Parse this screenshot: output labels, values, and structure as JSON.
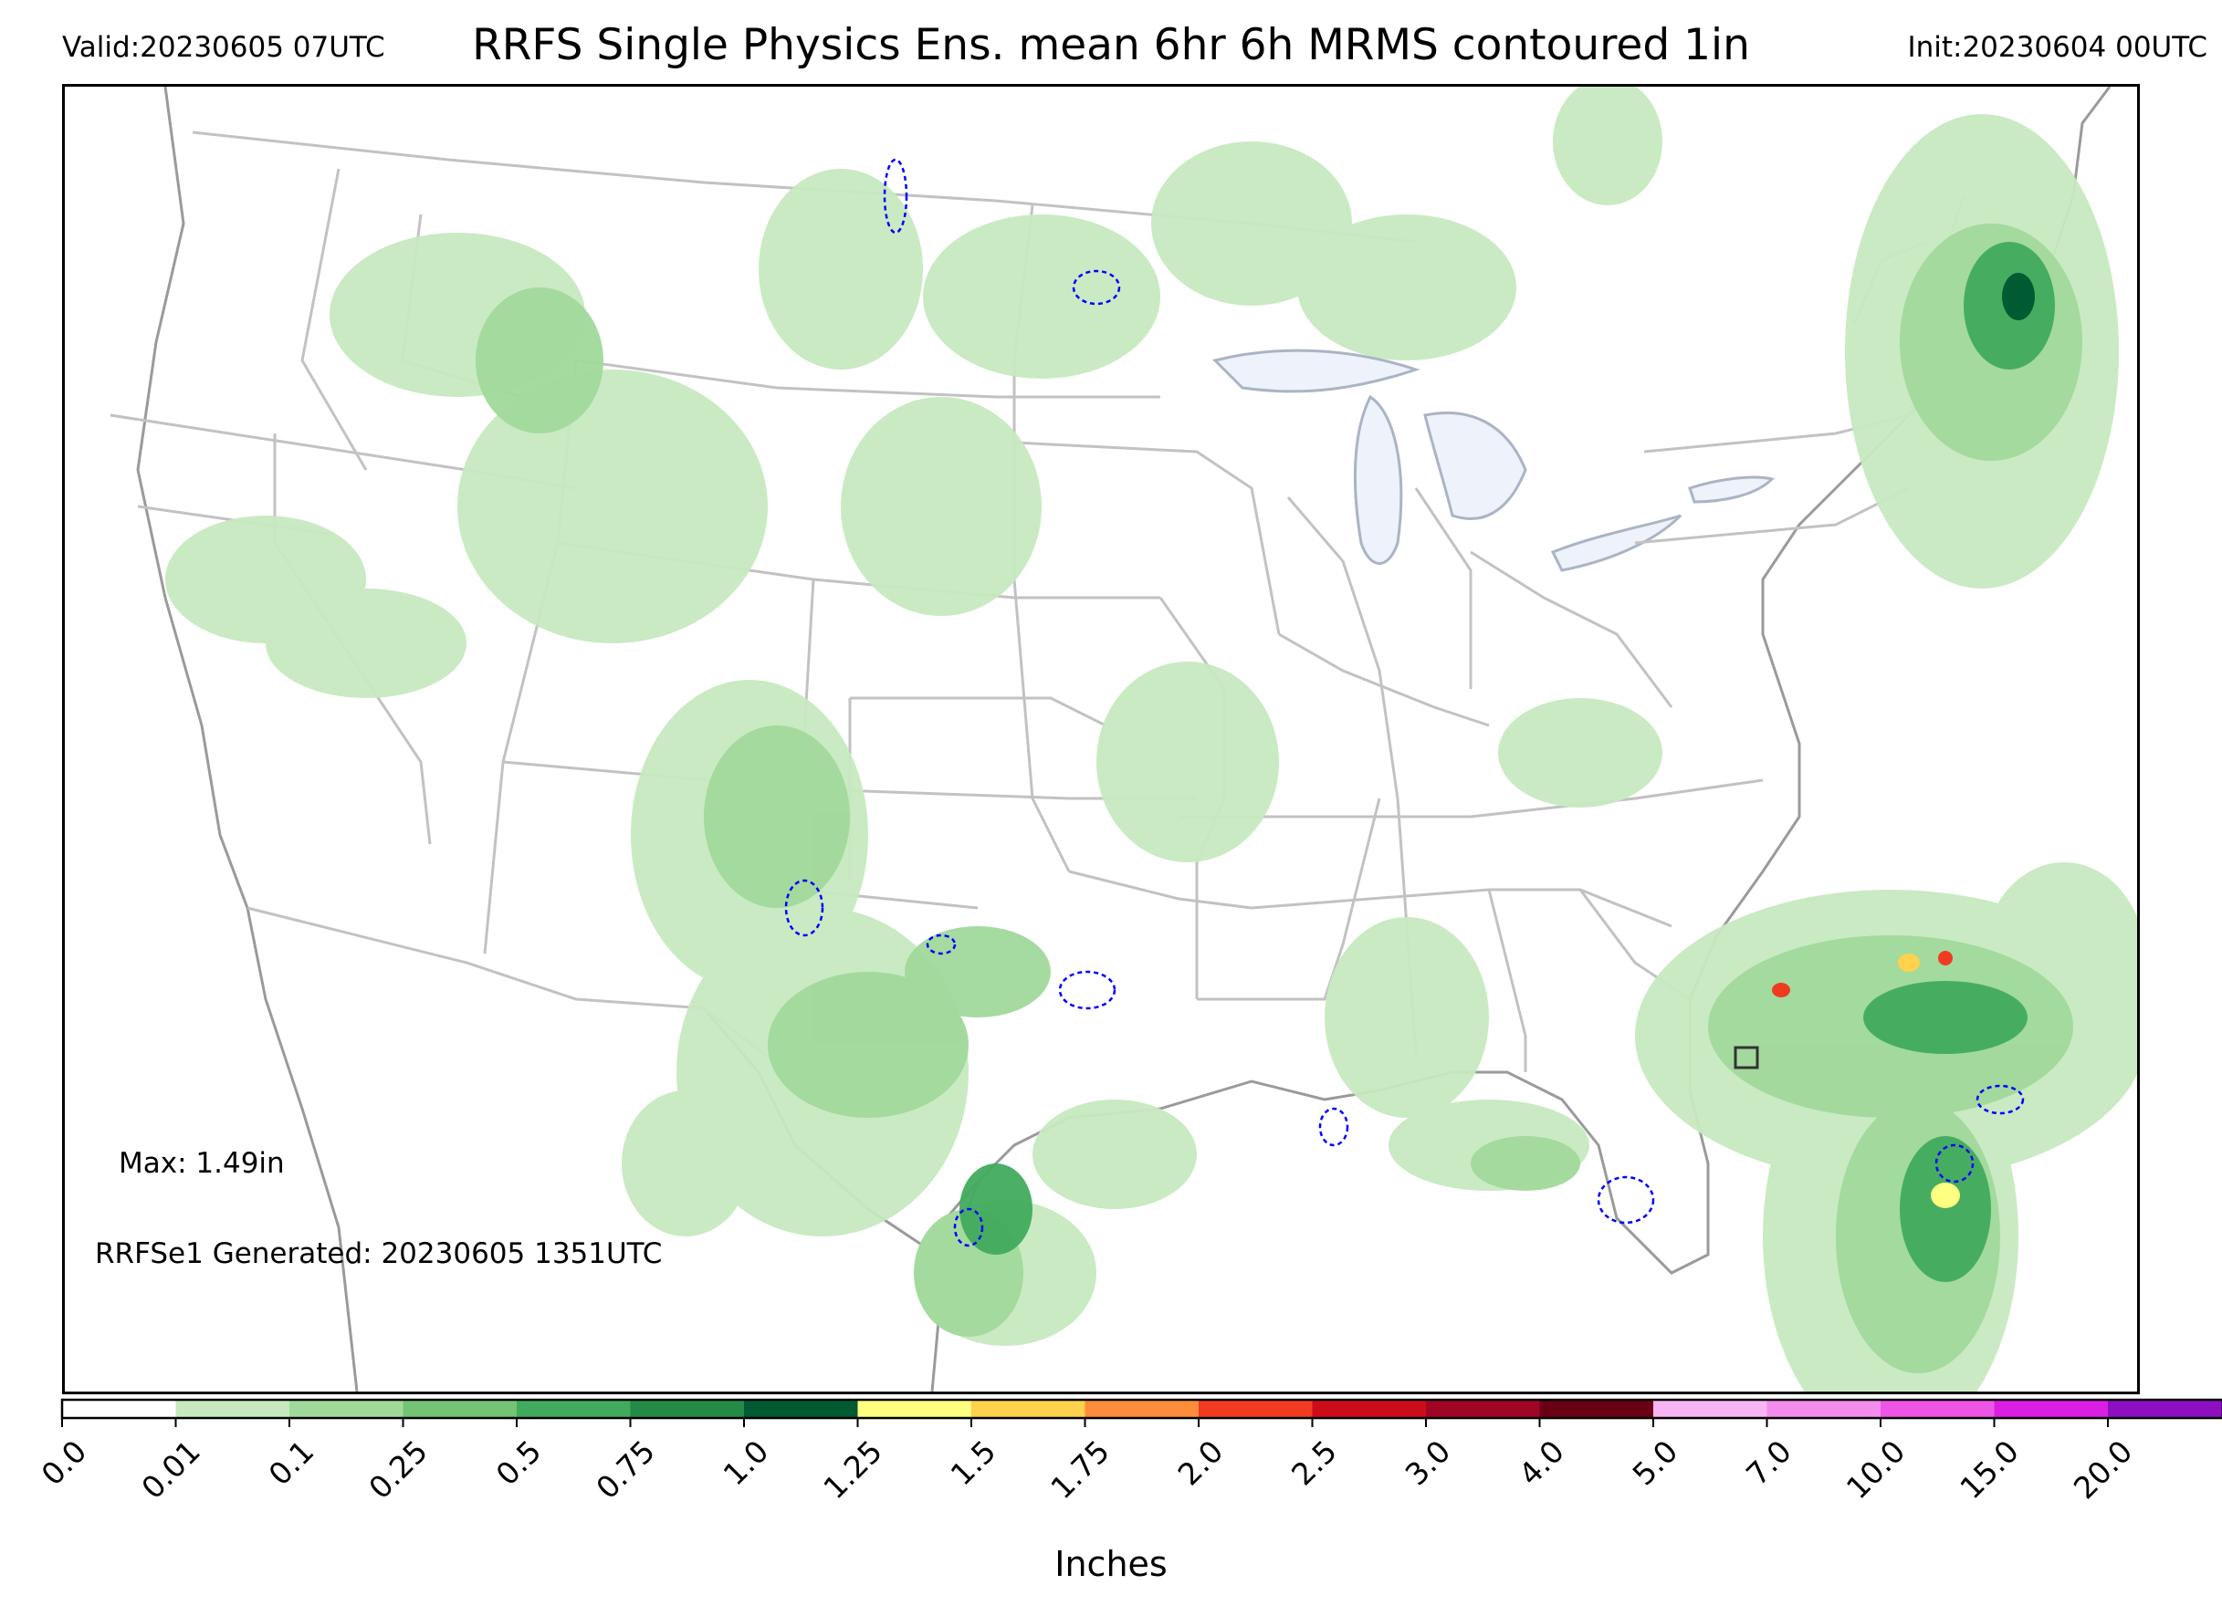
{
  "header": {
    "valid": "Valid:20230605 07UTC",
    "title": "RRFS Single Physics Ens. mean 6hr 6h MRMS contoured 1in",
    "init": "Init:20230604 00UTC"
  },
  "annotations": {
    "max": "Max: 1.49in",
    "generated": "RRFSe1 Generated: 20230605 1351UTC"
  },
  "colorbar": {
    "label": "Inches",
    "ticks": [
      "0.0",
      "0.01",
      "0.1",
      "0.25",
      "0.5",
      "0.75",
      "1.0",
      "1.25",
      "1.5",
      "1.75",
      "2.0",
      "2.5",
      "3.0",
      "4.0",
      "5.0",
      "7.0",
      "10.0",
      "15.0",
      "20.0"
    ],
    "colors": [
      "#ffffff",
      "#c7e9c0",
      "#a1d99b",
      "#74c476",
      "#41ab5d",
      "#238b45",
      "#005a32",
      "#ffff80",
      "#fed24c",
      "#fd8d3c",
      "#f03b20",
      "#cc0c1b",
      "#a10526",
      "#6a0015",
      "#f8b5f3",
      "#f48cee",
      "#ee55e6",
      "#da1ee2",
      "#8d0fc2"
    ],
    "extend_color": "#1a0033"
  },
  "map": {
    "projection": "Lambert Conformal CONUS",
    "contour_color": "#0000ff",
    "contour_value": "1in"
  }
}
